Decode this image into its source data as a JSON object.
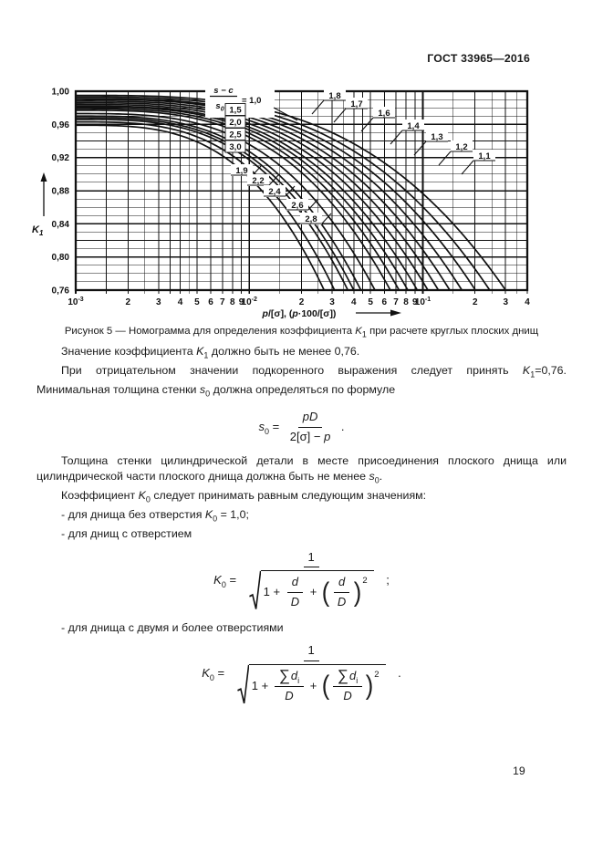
{
  "page": {
    "header": "ГОСТ 33965—2016",
    "number": "19"
  },
  "figure": {
    "caption": [
      {
        "t": "Рисунок 5 — Номограмма для определения коэффициента "
      },
      {
        "v": "K",
        "s": "1"
      },
      {
        "t": " при расчете круглых плоских днищ"
      }
    ]
  },
  "chart_data": {
    "type": "line",
    "title": "",
    "x_scale": "log",
    "xlim": [
      0.001,
      0.4
    ],
    "ylim": [
      0.76,
      1.0
    ],
    "grid": true,
    "legend": "none",
    "xlabel_parts": [
      {
        "i": "p"
      },
      {
        "t": "/[σ], ("
      },
      {
        "i": "p"
      },
      {
        "t": "·100/[σ])"
      }
    ],
    "ylabel": {
      "base": "K",
      "sub": "1"
    },
    "y_ticks": [
      {
        "label": "1,00",
        "value": 1.0
      },
      {
        "label": "0,96",
        "value": 0.96
      },
      {
        "label": "0,92",
        "value": 0.92
      },
      {
        "label": "0,88",
        "value": 0.88
      },
      {
        "label": "0,84",
        "value": 0.84
      },
      {
        "label": "0,80",
        "value": 0.8
      },
      {
        "label": "0,76",
        "value": 0.76
      }
    ],
    "y_minor_step": 0.01,
    "x_decade_ticks": [
      {
        "base": "10",
        "exp": "-3",
        "value": 0.001
      },
      {
        "base": "10",
        "exp": "-2",
        "value": 0.01
      },
      {
        "base": "10",
        "exp": "-1",
        "value": 0.1
      }
    ],
    "x_digit_ticks": [
      {
        "label": "2",
        "value": 0.002
      },
      {
        "label": "3",
        "value": 0.003
      },
      {
        "label": "4",
        "value": 0.004
      },
      {
        "label": "5",
        "value": 0.005
      },
      {
        "label": "6",
        "value": 0.006
      },
      {
        "label": "7",
        "value": 0.007
      },
      {
        "label": "8",
        "value": 0.008
      },
      {
        "label": "9",
        "value": 0.009
      },
      {
        "label": "2",
        "value": 0.02
      },
      {
        "label": "3",
        "value": 0.03
      },
      {
        "label": "4",
        "value": 0.04
      },
      {
        "label": "5",
        "value": 0.05
      },
      {
        "label": "6",
        "value": 0.06
      },
      {
        "label": "7",
        "value": 0.07
      },
      {
        "label": "8",
        "value": 0.08
      },
      {
        "label": "9",
        "value": 0.09
      },
      {
        "label": "2",
        "value": 0.2
      },
      {
        "label": "3",
        "value": 0.3
      },
      {
        "label": "4",
        "value": 0.4
      }
    ],
    "family_parameter_label": {
      "num": "s − c",
      "den_base": "s",
      "den_sub": "0",
      "eq": "= 1,0"
    },
    "curves": [
      {
        "param": 1.0,
        "label": "1,0",
        "k1_at_xmin": 0.995,
        "x_at_k1min": 0.3
      },
      {
        "param": 1.1,
        "label": "1,1",
        "k1_at_xmin": 0.993,
        "x_at_k1min": 0.243
      },
      {
        "param": 1.2,
        "label": "1,2",
        "k1_at_xmin": 0.991,
        "x_at_k1min": 0.201
      },
      {
        "param": 1.3,
        "label": "1,3",
        "k1_at_xmin": 0.99,
        "x_at_k1min": 0.168
      },
      {
        "param": 1.4,
        "label": "1,4",
        "k1_at_xmin": 0.988,
        "x_at_k1min": 0.143
      },
      {
        "param": 1.5,
        "label": "1,5",
        "k1_at_xmin": 0.986,
        "x_at_k1min": 0.123
      },
      {
        "param": 1.6,
        "label": "1,6",
        "k1_at_xmin": 0.984,
        "x_at_k1min": 0.107
      },
      {
        "param": 1.7,
        "label": "1,7",
        "k1_at_xmin": 0.982,
        "x_at_k1min": 0.093
      },
      {
        "param": 1.8,
        "label": "1,8",
        "k1_at_xmin": 0.981,
        "x_at_k1min": 0.082
      },
      {
        "param": 1.9,
        "label": "1,9",
        "k1_at_xmin": 0.979,
        "x_at_k1min": 0.073
      },
      {
        "param": 2.0,
        "label": "2,0",
        "k1_at_xmin": 0.977,
        "x_at_k1min": 0.065
      },
      {
        "param": 2.2,
        "label": "2,2",
        "k1_at_xmin": 0.973,
        "x_at_k1min": 0.053
      },
      {
        "param": 2.4,
        "label": "2,4",
        "k1_at_xmin": 0.97,
        "x_at_k1min": 0.044
      },
      {
        "param": 2.5,
        "label": "2,5",
        "k1_at_xmin": 0.968,
        "x_at_k1min": 0.04
      },
      {
        "param": 2.6,
        "label": "2,6",
        "k1_at_xmin": 0.966,
        "x_at_k1min": 0.037
      },
      {
        "param": 2.8,
        "label": "2,8",
        "k1_at_xmin": 0.963,
        "x_at_k1min": 0.031
      },
      {
        "param": 3.0,
        "label": "3,0",
        "k1_at_xmin": 0.959,
        "x_at_k1min": 0.027
      }
    ],
    "label_groups": {
      "top_right": [
        "1,8",
        "1,7",
        "1,6",
        "1,4",
        "1,3",
        "1,2",
        "1,1"
      ],
      "boxed": [
        "1,5",
        "2,0",
        "2,5",
        "3,0"
      ],
      "diagonal": [
        "1,9",
        "2,2",
        "2,4",
        "2,6",
        "2,8"
      ]
    }
  },
  "paragraphs": [
    [
      {
        "t": "Значение коэффициента "
      },
      {
        "v": "K",
        "s": "1"
      },
      {
        "t": " должно быть не менее 0,76."
      }
    ],
    [
      {
        "t": "При отрицательном значении подкоренного выражения следует принять "
      },
      {
        "v": "K",
        "s": "1"
      },
      {
        "t": "=0,76. Минимальная толщина стенки "
      },
      {
        "v": "s",
        "s": "0"
      },
      {
        "t": " должна определяться по формуле"
      }
    ],
    [
      {
        "t": "Толщина стенки цилиндрической детали в месте присоединения плоского днища или цилиндрической части плоского днища должна быть не менее "
      },
      {
        "v": "s",
        "s": "0"
      },
      {
        "t": "."
      }
    ],
    [
      {
        "t": "Коэффициент "
      },
      {
        "v": "K",
        "s": "0"
      },
      {
        "t": " следует принимать равным следующим значениям:"
      }
    ],
    [
      {
        "t": "- для днища без отверстия "
      },
      {
        "v": "K",
        "s": "0"
      },
      {
        "t": " = 1,0;"
      }
    ],
    [
      {
        "t": "- для днищ с отверстием"
      }
    ],
    [
      {
        "t": "- для днища с двумя и более отверстиями"
      }
    ]
  ],
  "formulas": {
    "s0": {
      "parts": [
        {
          "v": "s",
          "s": "0"
        },
        {
          "t": " = "
        },
        {
          "frac": {
            "num": [
              {
                "i": "pD"
              }
            ],
            "den": [
              {
                "t": "2[σ] − "
              },
              {
                "i": "p"
              }
            ]
          }
        },
        {
          "t": " ."
        }
      ]
    },
    "k0_one": {
      "parts": [
        {
          "v": "K",
          "s": "0"
        },
        {
          "t": " = "
        },
        {
          "frac": {
            "num": [
              {
                "t": "1"
              }
            ],
            "den": [
              {
                "sqrt": [
                  {
                    "t": "1 + "
                  },
                  {
                    "frac": {
                      "num": [
                        {
                          "i": "d"
                        }
                      ],
                      "den": [
                        {
                          "i": "D"
                        }
                      ]
                    }
                  },
                  {
                    "t": " + "
                  },
                  {
                    "par": {
                      "body": [
                        {
                          "frac": {
                            "num": [
                              {
                                "i": "d"
                              }
                            ],
                            "den": [
                              {
                                "i": "D"
                              }
                            ]
                          }
                        }
                      ],
                      "sup": "2"
                    }
                  }
                ]
              }
            ]
          }
        },
        {
          "t": " ;"
        }
      ]
    },
    "k0_multi": {
      "parts": [
        {
          "v": "K",
          "s": "0"
        },
        {
          "t": " = "
        },
        {
          "frac": {
            "num": [
              {
                "t": "1"
              }
            ],
            "den": [
              {
                "sqrt": [
                  {
                    "t": "1 + "
                  },
                  {
                    "frac": {
                      "num": [
                        {
                          "sig": {
                            "v": "d",
                            "s": "i"
                          }
                        }
                      ],
                      "den": [
                        {
                          "i": "D"
                        }
                      ]
                    }
                  },
                  {
                    "t": " + "
                  },
                  {
                    "par": {
                      "body": [
                        {
                          "frac": {
                            "num": [
                              {
                                "sig": {
                                  "v": "d",
                                  "s": "i"
                                }
                              }
                            ],
                            "den": [
                              {
                                "i": "D"
                              }
                            ]
                          }
                        }
                      ],
                      "sup": "2"
                    }
                  }
                ]
              }
            ]
          }
        },
        {
          "t": " ."
        }
      ]
    }
  }
}
